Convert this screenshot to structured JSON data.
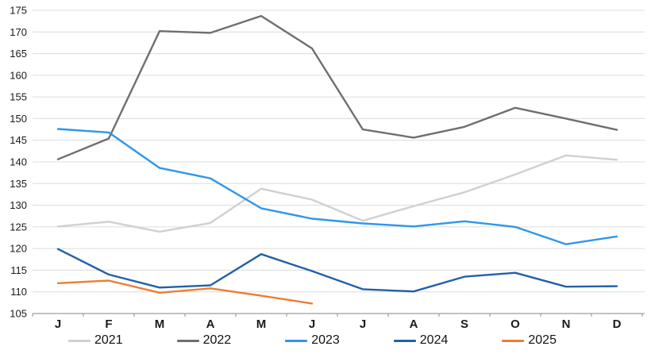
{
  "chart_data": {
    "type": "line",
    "title": "",
    "xlabel": "",
    "ylabel": "",
    "categories": [
      "J",
      "F",
      "M",
      "A",
      "M",
      "J",
      "J",
      "A",
      "S",
      "O",
      "N",
      "D"
    ],
    "ylim": [
      105,
      175
    ],
    "ytick_step": 5,
    "ytick_labels": [
      "105",
      "110",
      "115",
      "120",
      "125",
      "130",
      "135",
      "140",
      "145",
      "150",
      "155",
      "160",
      "165",
      "170",
      "175"
    ],
    "grid": "horizontal-only",
    "legend_position": "bottom",
    "series": [
      {
        "name": "2021",
        "color": "#d0d0d0",
        "values": [
          125.1,
          126.2,
          123.9,
          125.9,
          133.8,
          131.3,
          126.4,
          129.8,
          133.0,
          137.1,
          141.5,
          140.5
        ]
      },
      {
        "name": "2022",
        "color": "#6f6f6f",
        "values": [
          140.6,
          145.4,
          170.2,
          169.8,
          173.7,
          166.2,
          147.5,
          145.6,
          148.1,
          152.5,
          150.0,
          147.4
        ]
      },
      {
        "name": "2023",
        "color": "#2f96ec",
        "values": [
          147.6,
          146.8,
          138.6,
          136.2,
          129.3,
          126.9,
          125.8,
          125.1,
          126.3,
          125.0,
          121.0,
          122.8
        ]
      },
      {
        "name": "2024",
        "color": "#2260a8",
        "values": [
          119.9,
          114.0,
          111.0,
          111.5,
          118.7,
          114.8,
          110.6,
          110.1,
          113.5,
          114.4,
          111.2,
          111.3
        ]
      },
      {
        "name": "2025",
        "color": "#ed7d31",
        "values": [
          112.0,
          112.6,
          109.8,
          110.8,
          109.1,
          107.3
        ]
      }
    ]
  },
  "style_colors": {
    "gridline": "#dcdcdc",
    "axis_line": "#9e9e9e",
    "tick_label": "#1a1a1a"
  }
}
